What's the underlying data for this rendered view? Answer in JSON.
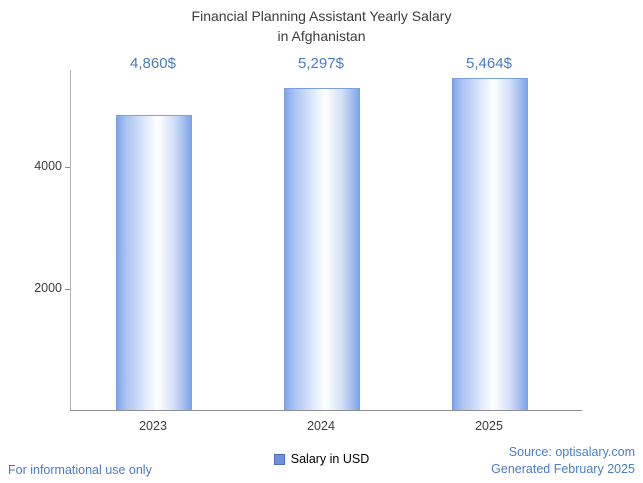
{
  "title": {
    "line1": "Financial Planning Assistant Yearly Salary",
    "line2": "in Afghanistan"
  },
  "chart_data": {
    "type": "bar",
    "title": "Financial Planning Assistant Yearly Salary in Afghanistan",
    "categories": [
      "2023",
      "2024",
      "2025"
    ],
    "values": [
      4860,
      5297,
      5464
    ],
    "value_labels": [
      "4,860$",
      "5,297$",
      "5,464$"
    ],
    "xlabel": "",
    "ylabel": "",
    "ylim": [
      0,
      5600
    ],
    "yticks": [
      2000,
      4000
    ],
    "ytick_labels": [
      "2000",
      "4000"
    ],
    "grid": false,
    "legend": {
      "label": "Salary in USD",
      "position": "bottom"
    },
    "bar_edge_color": "#7fa5e9",
    "bar_center_color": "#ffffff",
    "label_color": "#4a7ec0"
  },
  "footer": {
    "left": "For informational use only",
    "source": "Source: optisalary.com",
    "generated": "Generated February 2025"
  },
  "colors": {
    "accent_blue": "#4a7ec0",
    "title_text": "#3c3c3c"
  }
}
